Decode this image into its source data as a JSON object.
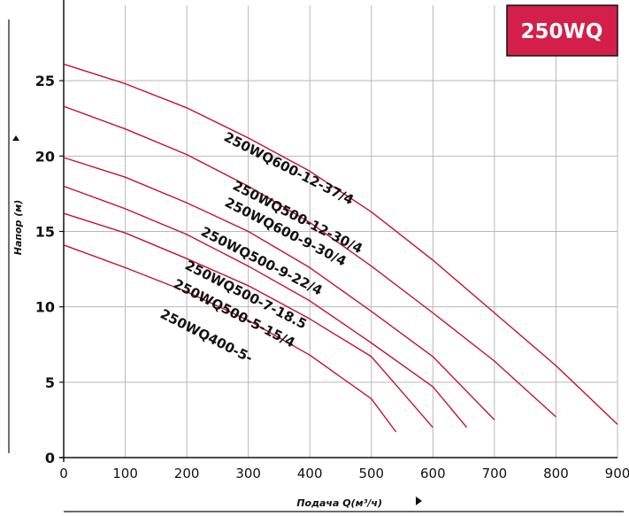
{
  "badge": {
    "text": "250WQ",
    "fill": "#d41f4a"
  },
  "chart_data": {
    "type": "line",
    "title": "",
    "xlabel": "Подача Q(м³/ч)",
    "ylabel": "Напор (м)",
    "xlim": [
      0,
      900
    ],
    "ylim": [
      0,
      30
    ],
    "x_ticks": [
      0,
      100,
      200,
      300,
      400,
      500,
      600,
      700,
      800,
      900
    ],
    "y_ticks": [
      0,
      5,
      10,
      15,
      20,
      25
    ],
    "grid": true,
    "line_color": "#c8102e",
    "series": [
      {
        "name": "250WQ600-12-37/4",
        "x": [
          0,
          100,
          200,
          300,
          400,
          500,
          600,
          700,
          800,
          900
        ],
        "y": [
          26.1,
          24.8,
          23.2,
          21.2,
          19.0,
          16.3,
          13.1,
          9.6,
          6.1,
          2.2
        ]
      },
      {
        "name": "250WQ500-12-30/4",
        "x": [
          0,
          100,
          200,
          300,
          400,
          500,
          600,
          700,
          800
        ],
        "y": [
          23.3,
          21.8,
          20.1,
          18.0,
          15.6,
          12.7,
          9.6,
          6.4,
          2.7
        ]
      },
      {
        "name": "250WQ600-9-30/4",
        "x": [
          0,
          100,
          200,
          300,
          400,
          500,
          600,
          700
        ],
        "y": [
          19.9,
          18.6,
          16.9,
          15.0,
          12.6,
          9.7,
          6.7,
          2.5
        ]
      },
      {
        "name": "250WQ500-9-22/4",
        "x": [
          0,
          100,
          200,
          300,
          400,
          500,
          600,
          655
        ],
        "y": [
          18.0,
          16.5,
          14.8,
          12.7,
          10.4,
          7.6,
          4.7,
          2.0
        ]
      },
      {
        "name": "250WQ500-7-18.5",
        "x": [
          0,
          100,
          200,
          300,
          400,
          500,
          600
        ],
        "y": [
          16.2,
          14.9,
          13.2,
          11.4,
          9.2,
          6.7,
          2.0
        ]
      },
      {
        "name": "250WQ500-5-15/4",
        "x": [
          0,
          100,
          200,
          300,
          400,
          500,
          540
        ],
        "y": [
          14.1,
          12.6,
          11.0,
          9.1,
          6.8,
          3.9,
          1.7
        ]
      },
      {
        "name": "250WQ400-5-"
      }
    ]
  }
}
